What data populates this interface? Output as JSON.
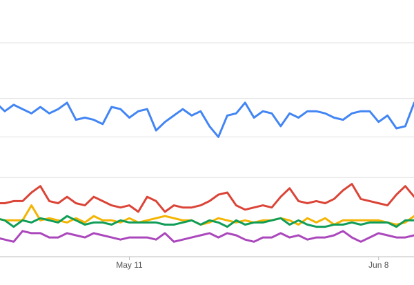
{
  "chart_data": {
    "type": "line",
    "categories": [
      null,
      null,
      null,
      null,
      null,
      null,
      null,
      null,
      null,
      null,
      null,
      null,
      null,
      null,
      null,
      "May 11",
      null,
      null,
      null,
      null,
      null,
      null,
      null,
      null,
      null,
      null,
      null,
      null,
      null,
      null,
      null,
      null,
      null,
      null,
      null,
      null,
      null,
      null,
      null,
      null,
      null,
      null,
      null,
      "Jun 8",
      null,
      null,
      null,
      null
    ],
    "ylim": [
      0,
      100
    ],
    "yticks": [
      0,
      37,
      56,
      74,
      100
    ],
    "grid": true,
    "series": [
      {
        "color": "#4285f4",
        "values": [
          72,
          68,
          71,
          69,
          67,
          70,
          67,
          69,
          72,
          64,
          65,
          64,
          62,
          70,
          69,
          65,
          68,
          69,
          59,
          63,
          66,
          69,
          66,
          68,
          61,
          56,
          66,
          67,
          72,
          65,
          68,
          67,
          61,
          67,
          65,
          68,
          68,
          67,
          65,
          64,
          67,
          68,
          68,
          63,
          66,
          60,
          61,
          72
        ]
      },
      {
        "color": "#db4437",
        "values": [
          25,
          25,
          26,
          26,
          30,
          33,
          26,
          25,
          28,
          25,
          24,
          28,
          26,
          24,
          23,
          24,
          21,
          28,
          26,
          21,
          24,
          23,
          23,
          24,
          26,
          29,
          30,
          24,
          22,
          23,
          24,
          23,
          28,
          32,
          26,
          25,
          26,
          25,
          27,
          31,
          34,
          27,
          26,
          25,
          24,
          29,
          33,
          28
        ]
      },
      {
        "color": "#f4b400",
        "values": [
          18,
          17,
          17,
          17,
          24,
          17,
          18,
          17,
          16,
          18,
          16,
          19,
          17,
          17,
          16,
          18,
          16,
          17,
          18,
          19,
          18,
          17,
          17,
          15,
          16,
          18,
          17,
          16,
          17,
          16,
          17,
          17,
          18,
          17,
          15,
          18,
          16,
          18,
          15,
          17,
          17,
          17,
          17,
          17,
          16,
          15,
          16,
          19
        ]
      },
      {
        "color": "#0f9d58",
        "values": [
          18,
          17,
          14,
          17,
          16,
          18,
          17,
          16,
          19,
          17,
          15,
          16,
          16,
          15,
          17,
          16,
          16,
          16,
          16,
          15,
          15,
          16,
          17,
          15,
          17,
          16,
          14,
          17,
          15,
          16,
          16,
          17,
          18,
          15,
          17,
          15,
          14,
          14,
          15,
          15,
          16,
          15,
          16,
          16,
          16,
          14,
          17,
          17
        ]
      },
      {
        "color": "#ab47bc",
        "values": [
          9,
          8,
          7,
          12,
          11,
          11,
          9,
          9,
          11,
          10,
          9,
          11,
          10,
          9,
          8,
          9,
          9,
          9,
          8,
          11,
          7,
          8,
          9,
          10,
          11,
          9,
          11,
          10,
          8,
          7,
          9,
          9,
          11,
          9,
          10,
          8,
          9,
          9,
          10,
          12,
          9,
          7,
          9,
          11,
          10,
          9,
          9,
          10
        ]
      }
    ]
  }
}
